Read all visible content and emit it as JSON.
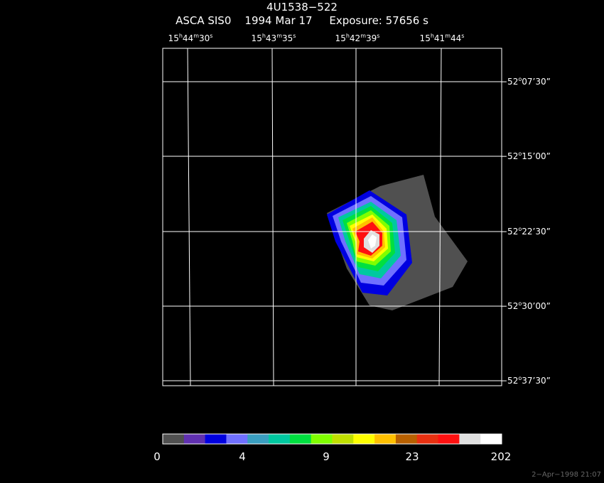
{
  "header": {
    "title": "4U1538−522",
    "subtitle": "ASCA SIS0    1994 Mar 17     Exposure: 57656 s"
  },
  "axes": {
    "ra_ticks": [
      {
        "h": "15",
        "m": "44",
        "s": "30"
      },
      {
        "h": "15",
        "m": "43",
        "s": "35"
      },
      {
        "h": "15",
        "m": "42",
        "s": "39"
      },
      {
        "h": "15",
        "m": "41",
        "s": "44"
      }
    ],
    "dec_ticks": [
      {
        "d": "−52",
        "m": "07",
        "s": "30"
      },
      {
        "d": "−52",
        "m": "15",
        "s": "00"
      },
      {
        "d": "−52",
        "m": "22",
        "s": "30"
      },
      {
        "d": "−52",
        "m": "30",
        "s": "00"
      },
      {
        "d": "−52",
        "m": "37",
        "s": "30"
      }
    ]
  },
  "colorbar": {
    "colors": [
      "#505050",
      "#6030b0",
      "#0000e0",
      "#7070ff",
      "#3a9ec0",
      "#00c8a0",
      "#00e040",
      "#80ff00",
      "#c0e000",
      "#ffff00",
      "#ffc000",
      "#b86000",
      "#e83010",
      "#ff1010",
      "#e0e0e0",
      "#ffffff"
    ],
    "labels": [
      "0",
      "4",
      "9",
      "23",
      "202"
    ]
  },
  "footer": {
    "timestamp": "2−Apr−1998 21:07"
  }
}
